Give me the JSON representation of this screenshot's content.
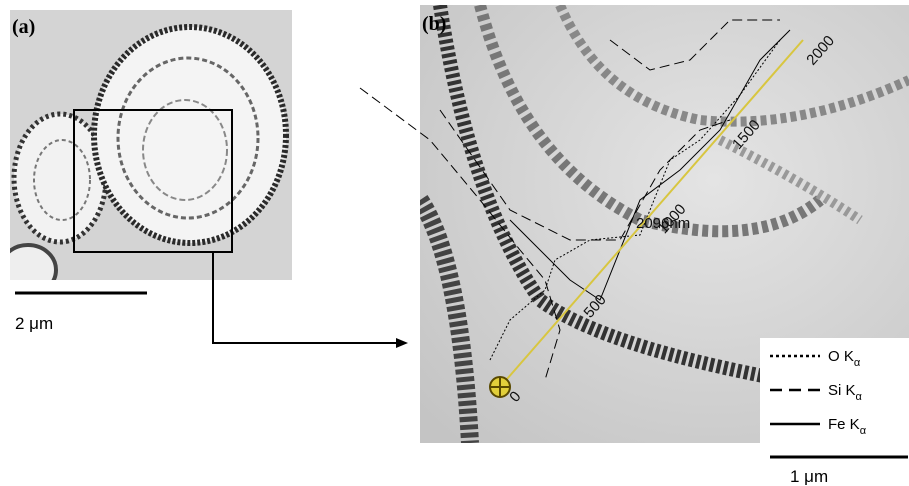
{
  "panels": [
    {
      "label": "(a)",
      "scale_bar": "2 μm"
    },
    {
      "label": "(b)",
      "scale_bar": "1 μm"
    }
  ],
  "line_scan": {
    "ticks": [
      0,
      500,
      1000,
      1500,
      2000
    ],
    "length_label": "2096nm"
  },
  "legend": [
    {
      "text": "O K",
      "subscript": "α"
    },
    {
      "text": "Si K",
      "subscript": "α"
    },
    {
      "text": "Fe K",
      "subscript": "α"
    }
  ]
}
